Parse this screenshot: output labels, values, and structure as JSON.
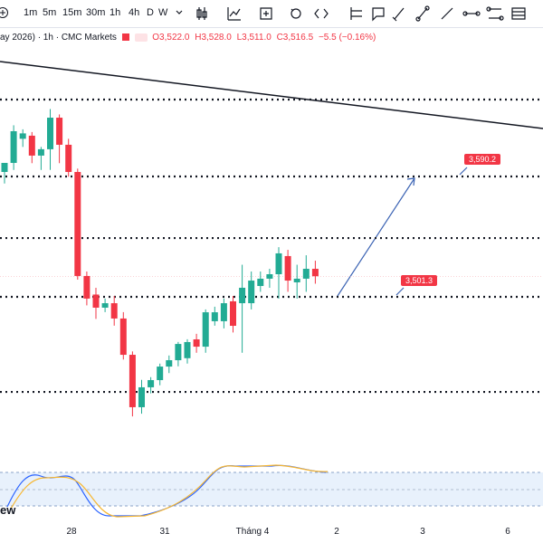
{
  "toolbar": {
    "timeframes": [
      "1m",
      "5m",
      "15m",
      "30m",
      "1h",
      "4h",
      "D",
      "W"
    ],
    "active": 4
  },
  "header": {
    "symbol": "ay 2026) · 1h · CMC Markets",
    "open": "O3,522.0",
    "high": "H3,528.0",
    "low": "L3,511.0",
    "close": "C3,516.5",
    "change": "−5.5 (−0.16%)"
  },
  "chart_data": {
    "type": "candlestick",
    "ylim": [
      3406.4,
      3680.4
    ],
    "up_color": "#22ab94",
    "down_color": "#f23645",
    "candles": [
      [
        3593.5,
        3600,
        3585,
        3600.2
      ],
      [
        3600.2,
        3628,
        3595,
        3623.6
      ],
      [
        3618,
        3625,
        3612,
        3622
      ],
      [
        3620.3,
        3623,
        3600,
        3605.6
      ],
      [
        3605.6,
        3612,
        3595,
        3610.3
      ],
      [
        3610.3,
        3640,
        3595,
        3633.6
      ],
      [
        3633.6,
        3636,
        3600,
        3613.6
      ],
      [
        3613.6,
        3618,
        3590,
        3593.5
      ],
      [
        3593.5,
        3596,
        3514,
        3516.7
      ],
      [
        3516.7,
        3520,
        3495,
        3500.0
      ],
      [
        3503,
        3508,
        3485,
        3493.3
      ],
      [
        3493.3,
        3500,
        3490,
        3496.6
      ],
      [
        3496.6,
        3502,
        3480,
        3485.3
      ],
      [
        3485.3,
        3490,
        3455,
        3458.5
      ],
      [
        3458.5,
        3461,
        3413,
        3419.8
      ],
      [
        3419.8,
        3440,
        3415,
        3434.5
      ],
      [
        3434.5,
        3442,
        3430,
        3439.8
      ],
      [
        3439.8,
        3452,
        3436,
        3449.8
      ],
      [
        3449.8,
        3458,
        3445,
        3454.5
      ],
      [
        3454.5,
        3468,
        3450,
        3466.5
      ],
      [
        3456,
        3470,
        3452,
        3467.9
      ],
      [
        3469.9,
        3474,
        3460,
        3464.5
      ],
      [
        3464.5,
        3492,
        3460,
        3489.9
      ],
      [
        3483.3,
        3494,
        3480,
        3489.9
      ],
      [
        3483.3,
        3500,
        3478,
        3496.6
      ],
      [
        3498,
        3502,
        3475,
        3479.9
      ],
      [
        3496.6,
        3525,
        3460,
        3508.0
      ],
      [
        3496.6,
        3520,
        3492,
        3513.3
      ],
      [
        3509.3,
        3520,
        3505,
        3514.7
      ],
      [
        3514.7,
        3522,
        3508,
        3518.0
      ],
      [
        3518.0,
        3538,
        3500,
        3533.4
      ],
      [
        3531.4,
        3536,
        3505,
        3513.3
      ],
      [
        3512,
        3525,
        3500,
        3514.7
      ],
      [
        3514.7,
        3532,
        3505,
        3522.0
      ],
      [
        3522.0,
        3528.0,
        3511.0,
        3516.5
      ]
    ],
    "levels": [
      3647,
      3590.2,
      3544.7,
      3501.3,
      3431.1
    ],
    "current_price": 3516.5,
    "price_labels": [
      {
        "value": 3590.2,
        "label": "3,590.2"
      },
      {
        "value": 3501.3,
        "label": "3,501.3"
      }
    ]
  },
  "x_axis": [
    "28",
    "31",
    "Tháng 4",
    "2",
    "3",
    "6"
  ],
  "watermark": "ew"
}
